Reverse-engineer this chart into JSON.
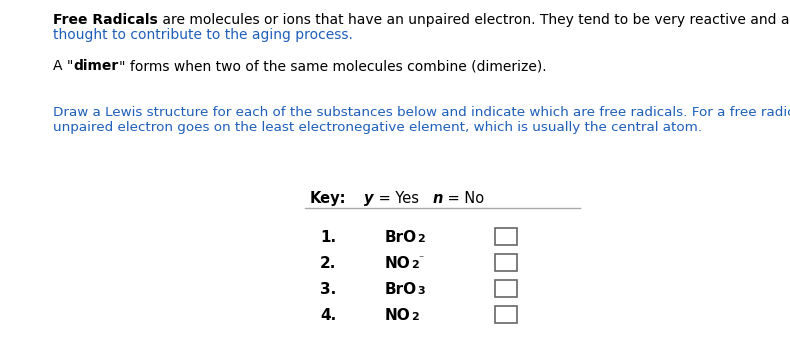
{
  "bg_color": "#ffffff",
  "text_color": "#000000",
  "blue_color": "#1f5fba",
  "para1_bold": "Free Radicals",
  "para1_line1_rest": " are molecules or ions that have an unpaired electron. They tend to be very reactive and are",
  "para1_line2": "thought to contribute to the aging process.",
  "para2_a": "A \"",
  "para2_dimer": "dimer",
  "para2_rest": "\" forms when two of the same molecules combine (dimerize).",
  "para3_line1": "Draw a Lewis structure for each of the substances below and indicate which are free radicals. For a free radical the",
  "para3_line2": "unpaired electron goes on the least electronegative element, which is usually the central atom.",
  "key_bold": "Key:",
  "key_y_italic": "y",
  "key_yes": " = Yes",
  "key_n_italic": "n",
  "key_no": " = No",
  "items": [
    {
      "num": "1.",
      "main": "BrO",
      "sub": "2",
      "sup": null
    },
    {
      "num": "2.",
      "main": "NO",
      "sub": "2",
      "sup": "⁻"
    },
    {
      "num": "3.",
      "main": "BrO",
      "sub": "3",
      "sup": null
    },
    {
      "num": "4.",
      "main": "NO",
      "sub": "2",
      "sup": null
    }
  ],
  "font_body": 10.0,
  "font_key": 10.5,
  "font_item_num": 11.0,
  "font_item_formula": 11.0,
  "font_item_sub": 8.0
}
